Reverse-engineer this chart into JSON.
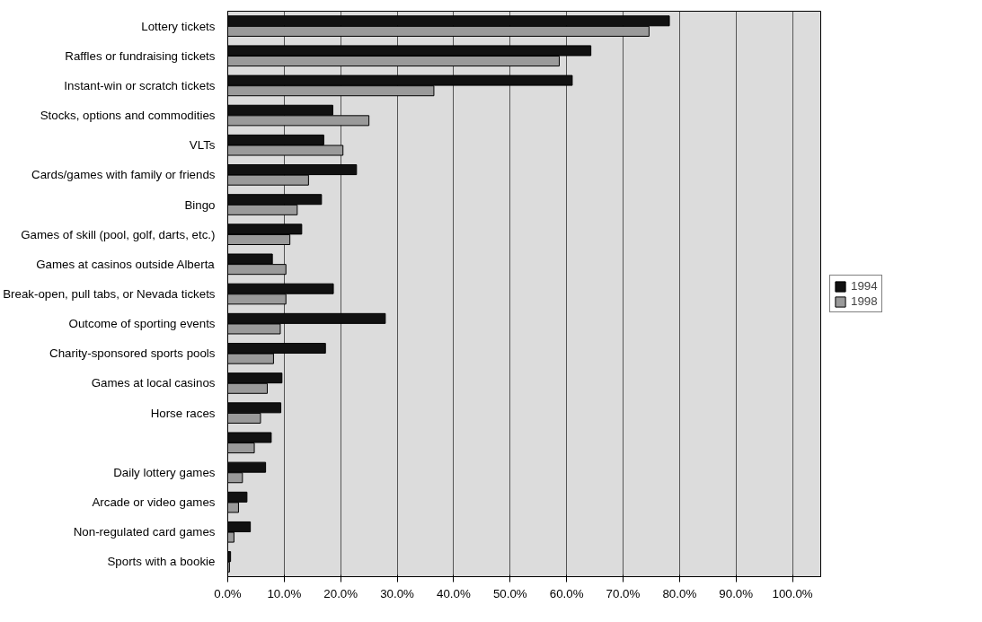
{
  "chart_data": {
    "type": "bar",
    "orientation": "horizontal",
    "categories": [
      "Lottery tickets",
      "Raffles or fundraising tickets",
      "Instant-win or scratch tickets",
      "Stocks, options and commodities",
      "VLTs",
      "Cards/games with family or friends",
      "Bingo",
      "Games of skill (pool, golf, darts, etc.)",
      "Games at casinos outside Alberta",
      "Break-open, pull tabs, or Nevada tickets",
      "Outcome of sporting events",
      "Charity-sponsored sports pools",
      "Games at local casinos",
      "Horse races",
      null,
      "Daily lottery games",
      "Arcade or video games",
      "Non-regulated card games",
      "Sports with a bookie"
    ],
    "series": [
      {
        "name": "1994",
        "color": "#111111",
        "values": [
          78.2,
          64.3,
          61.0,
          18.6,
          17.0,
          22.8,
          16.6,
          13.1,
          7.9,
          18.7,
          27.9,
          17.3,
          9.6,
          9.4,
          7.7,
          6.7,
          3.4,
          4.0,
          0.5
        ]
      },
      {
        "name": "1998",
        "color": "#9a9a9a",
        "values": [
          74.6,
          58.7,
          36.5,
          25.0,
          20.4,
          14.3,
          12.3,
          11.0,
          10.3,
          10.3,
          9.3,
          8.1,
          7.0,
          5.8,
          4.7,
          2.6,
          1.9,
          1.1,
          0.3
        ]
      }
    ],
    "xlim": [
      0,
      105
    ],
    "xticks": [
      {
        "value": 0,
        "label": "0.0%"
      },
      {
        "value": 10,
        "label": "10.0%"
      },
      {
        "value": 20,
        "label": "20.0%"
      },
      {
        "value": 30,
        "label": "30.0%"
      },
      {
        "value": 40,
        "label": "40.0%"
      },
      {
        "value": 50,
        "label": "50.0%"
      },
      {
        "value": 60,
        "label": "60.0%"
      },
      {
        "value": 70,
        "label": "70.0%"
      },
      {
        "value": 80,
        "label": "80.0%"
      },
      {
        "value": 90,
        "label": "90.0%"
      },
      {
        "value": 100,
        "label": "100.0%"
      }
    ],
    "grid": "x",
    "legend": "right"
  }
}
